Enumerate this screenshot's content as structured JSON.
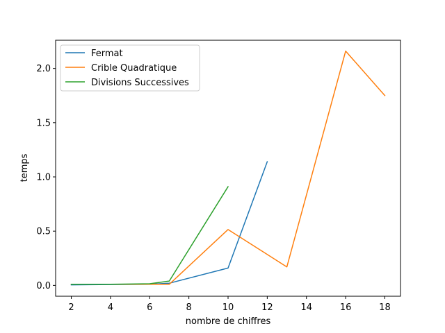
{
  "chart_data": {
    "type": "line",
    "xlabel": "nombre de chiffres",
    "ylabel": "temps",
    "xlim": [
      1.2,
      18.8
    ],
    "ylim": [
      -0.1,
      2.26
    ],
    "x_ticks": [
      2,
      4,
      6,
      8,
      10,
      12,
      14,
      16,
      18
    ],
    "x_tick_labels": [
      "2",
      "4",
      "6",
      "8",
      "10",
      "12",
      "14",
      "16",
      "18"
    ],
    "y_ticks": [
      0.0,
      0.5,
      1.0,
      1.5,
      2.0
    ],
    "y_tick_labels": [
      "0.0",
      "0.5",
      "1.0",
      "1.5",
      "2.0"
    ],
    "grid": false,
    "legend_position": "top-left",
    "series": [
      {
        "name": "Fermat",
        "color": "#1f77b4",
        "x": [
          2,
          4,
          6,
          7,
          10,
          12
        ],
        "y": [
          0.005,
          0.008,
          0.01,
          0.02,
          0.16,
          1.14
        ]
      },
      {
        "name": "Crible Quadratique",
        "color": "#ff7f0e",
        "x": [
          2,
          4,
          6,
          7,
          10,
          13,
          16,
          18
        ],
        "y": [
          0.01,
          0.01,
          0.01,
          0.01,
          0.515,
          0.17,
          2.16,
          1.75
        ]
      },
      {
        "name": "Divisions Successives",
        "color": "#2ca02c",
        "x": [
          2,
          4,
          6,
          7,
          10
        ],
        "y": [
          0.01,
          0.01,
          0.015,
          0.04,
          0.91
        ]
      }
    ]
  }
}
